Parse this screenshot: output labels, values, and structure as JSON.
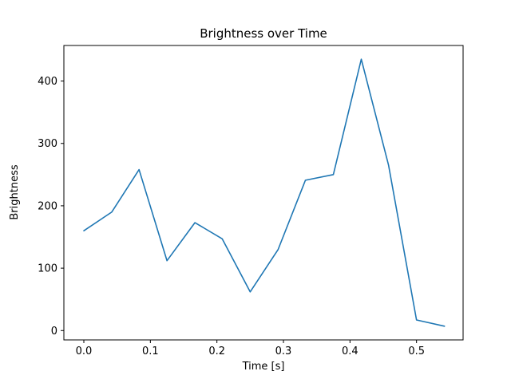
{
  "figure": {
    "background": "#ffffff"
  },
  "chart_data": {
    "type": "line",
    "title": "Brightness over Time",
    "xlabel": "Time [s]",
    "ylabel": "Brightness",
    "x": [
      0.0,
      0.042,
      0.083,
      0.125,
      0.167,
      0.208,
      0.25,
      0.292,
      0.333,
      0.375,
      0.417,
      0.458,
      0.5,
      0.542
    ],
    "y": [
      160,
      190,
      258,
      112,
      173,
      147,
      62,
      130,
      241,
      250,
      435,
      265,
      17,
      7
    ],
    "xlim": [
      -0.03,
      0.57
    ],
    "ylim": [
      -15,
      457
    ],
    "xticks": [
      0.0,
      0.1,
      0.2,
      0.3,
      0.4,
      0.5
    ],
    "yticks": [
      0,
      100,
      200,
      300,
      400
    ],
    "line_color": "#1f77b4",
    "axis_color": "#000000",
    "grid": false,
    "legend": "none"
  }
}
